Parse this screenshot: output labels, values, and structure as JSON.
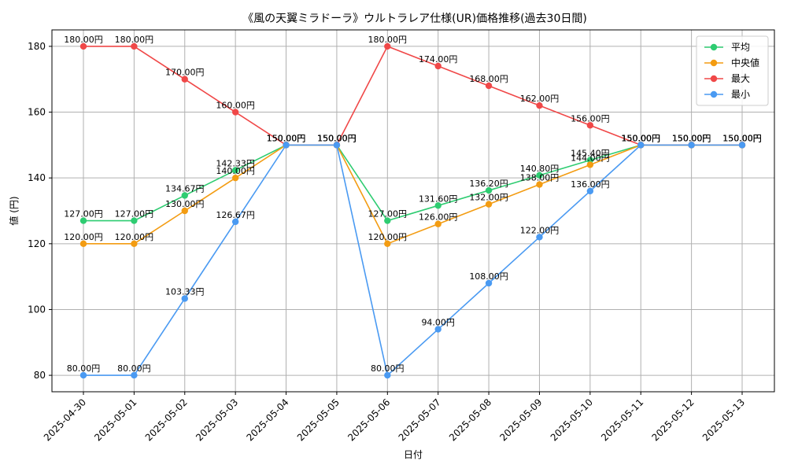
{
  "chart_data": {
    "type": "line",
    "title": "《風の天翼ミラドーラ》ウルトラレア仕様(UR)価格推移(過去30日間)",
    "xlabel": "日付",
    "ylabel": "値 (円)",
    "categories": [
      "2025-04-30",
      "2025-05-01",
      "2025-05-02",
      "2025-05-03",
      "2025-05-04",
      "2025-05-05",
      "2025-05-06",
      "2025-05-07",
      "2025-05-08",
      "2025-05-09",
      "2025-05-10",
      "2025-05-11",
      "2025-05-12",
      "2025-05-13"
    ],
    "ylim": [
      75,
      185
    ],
    "yticks": [
      80,
      100,
      120,
      140,
      160,
      180
    ],
    "grid": true,
    "legend_position": "top-right",
    "label_suffix": "円",
    "series": [
      {
        "name": "平均",
        "color": "#2ecc71",
        "values": [
          127.0,
          127.0,
          134.67,
          142.33,
          150.0,
          150.0,
          127.0,
          131.6,
          136.2,
          140.8,
          145.4,
          150.0,
          150.0,
          150.0
        ]
      },
      {
        "name": "中央値",
        "color": "#f39c12",
        "values": [
          120.0,
          120.0,
          130.0,
          140.0,
          150.0,
          150.0,
          120.0,
          126.0,
          132.0,
          138.0,
          144.0,
          150.0,
          150.0,
          150.0
        ]
      },
      {
        "name": "最大",
        "color": "#f04848",
        "values": [
          180.0,
          180.0,
          170.0,
          160.0,
          150.0,
          150.0,
          180.0,
          174.0,
          168.0,
          162.0,
          156.0,
          150.0,
          150.0,
          150.0
        ]
      },
      {
        "name": "最小",
        "color": "#4a9af2",
        "values": [
          80.0,
          80.0,
          103.33,
          126.67,
          150.0,
          150.0,
          80.0,
          94.0,
          108.0,
          122.0,
          136.0,
          150.0,
          150.0,
          150.0
        ]
      }
    ]
  }
}
